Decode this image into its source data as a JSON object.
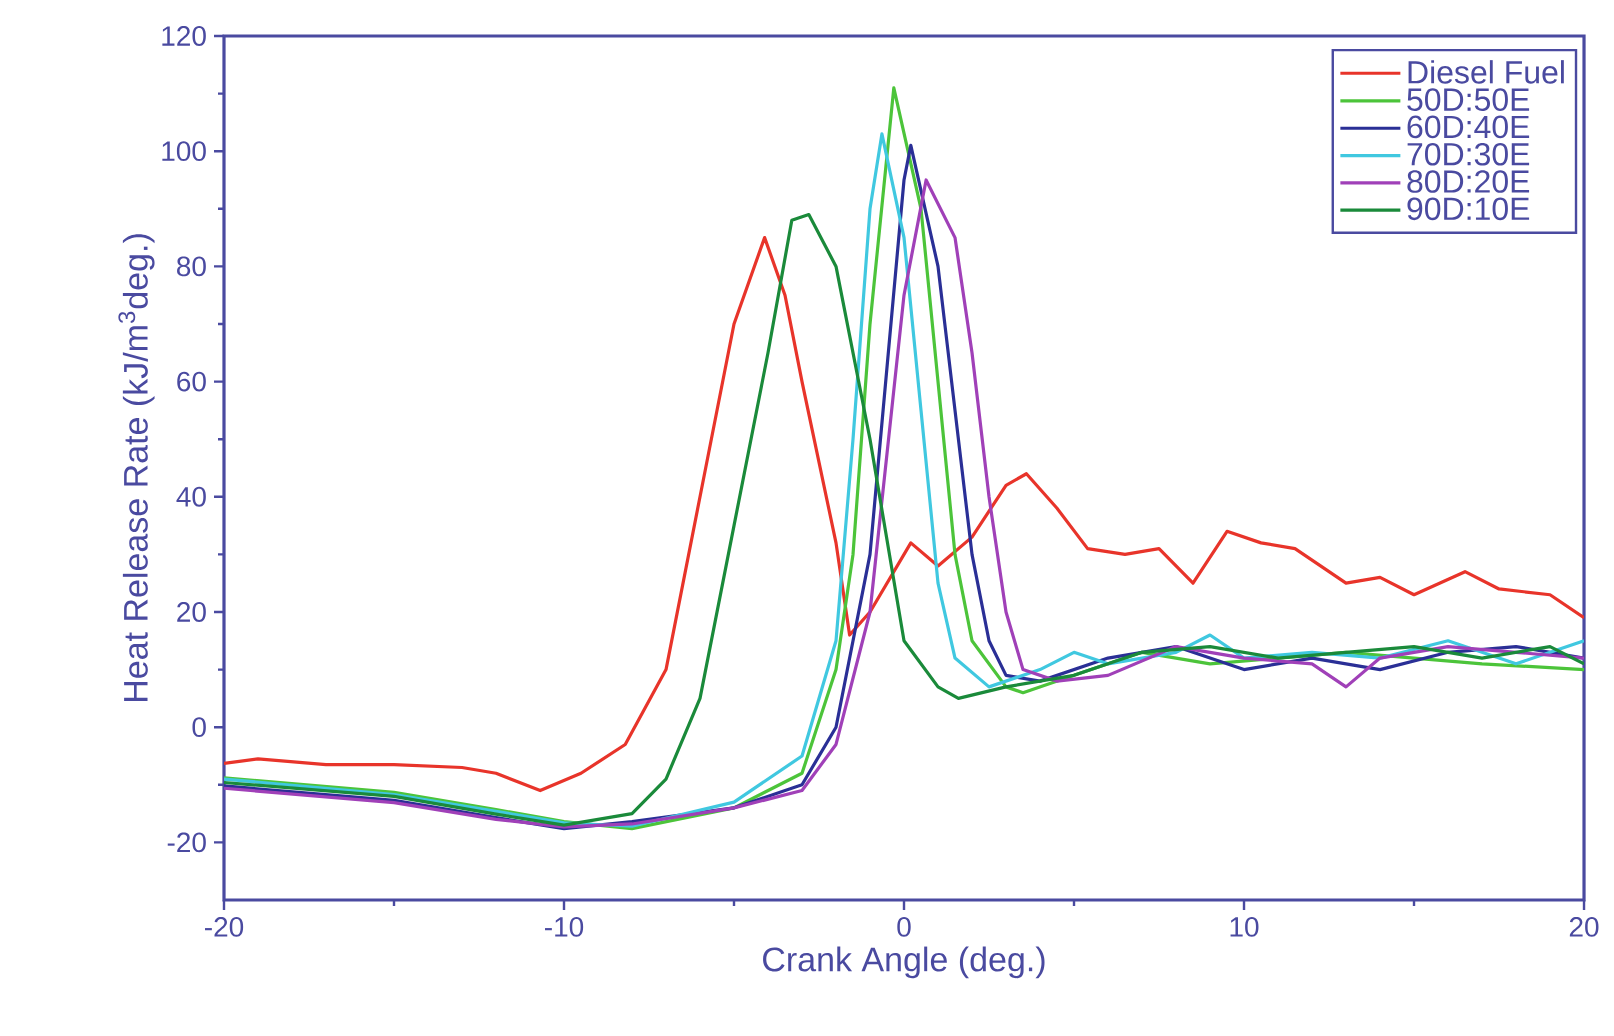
{
  "chart_data": {
    "type": "line",
    "xlabel": "Crank Angle (deg.)",
    "ylabel": "Heat Release Rate (kJ/m$^{3}$deg.)",
    "xlim": [
      -20,
      20
    ],
    "ylim": [
      -30,
      120
    ],
    "xticks": [
      -20,
      -10,
      0,
      10,
      20
    ],
    "yticks": [
      -20,
      0,
      20,
      40,
      60,
      80,
      100,
      120
    ],
    "grid": false,
    "legend": "top right",
    "marker": "none",
    "line_style": "solid",
    "series": [
      {
        "name": "Diesel Fuel",
        "color": "#e8342a",
        "x": [
          -20,
          -19,
          -17,
          -15,
          -13,
          -12,
          -10.7,
          -9.5,
          -8.2,
          -7,
          -6,
          -5,
          -4.1,
          -3.5,
          -3,
          -2,
          -1.6,
          -1,
          0.2,
          1,
          2,
          3,
          3.6,
          4.5,
          5.4,
          6.5,
          7.5,
          8.5,
          9.5,
          10.5,
          11.5,
          13,
          14,
          15,
          16.5,
          17.5,
          19,
          20
        ],
        "values": [
          -6.3,
          -5.5,
          -6.5,
          -6.5,
          -7,
          -8,
          -11,
          -8,
          -3,
          10,
          40,
          70,
          85,
          75,
          60,
          32,
          16,
          20,
          32,
          28,
          33,
          42,
          44,
          38,
          31,
          30,
          31,
          25,
          34,
          32,
          31,
          25,
          26,
          23,
          27,
          24,
          23,
          19
        ]
      },
      {
        "name": "50D:50E",
        "color": "#4cc43a",
        "x": [
          -20,
          -15,
          -12,
          -10,
          -8,
          -5,
          -3,
          -2,
          -1.5,
          -1,
          -0.3,
          0.5,
          1,
          1.5,
          2,
          3,
          3.5,
          5,
          7,
          9,
          11,
          13,
          15,
          17,
          20
        ],
        "values": [
          -8.8,
          -11.3,
          -14.3,
          -16.4,
          -17.6,
          -14,
          -8,
          10,
          30,
          70,
          111,
          90,
          60,
          30,
          15,
          7,
          6,
          9,
          13,
          11,
          12,
          13,
          12,
          11,
          10
        ]
      },
      {
        "name": "60D:40E",
        "color": "#2a2f96",
        "x": [
          -20,
          -15,
          -12,
          -10,
          -8,
          -5,
          -3,
          -2,
          -1,
          0,
          0.2,
          1,
          1.5,
          2,
          2.5,
          3,
          4,
          6,
          8,
          10,
          12,
          14,
          16,
          18,
          20
        ],
        "values": [
          -10.2,
          -12.7,
          -15.7,
          -17.6,
          -16.4,
          -14,
          -10,
          0,
          30,
          95,
          101,
          80,
          55,
          30,
          15,
          9,
          8,
          12,
          14,
          10,
          12,
          10,
          13,
          14,
          12
        ]
      },
      {
        "name": "70D:30E",
        "color": "#40c8e0",
        "x": [
          -20,
          -15,
          -12,
          -10,
          -8,
          -5,
          -3,
          -2,
          -1.5,
          -1,
          -0.65,
          0,
          0.5,
          1,
          1.5,
          2.5,
          4,
          5,
          6,
          8,
          9,
          10,
          12,
          14,
          16,
          18,
          20
        ],
        "values": [
          -9.0,
          -11.7,
          -14.6,
          -16.6,
          -17.2,
          -13,
          -5,
          15,
          50,
          90,
          103,
          85,
          55,
          25,
          12,
          7,
          10,
          13,
          11,
          13,
          16,
          12,
          13,
          12,
          15,
          11,
          15
        ]
      },
      {
        "name": "80D:20E",
        "color": "#a040b8",
        "x": [
          -20,
          -15,
          -12,
          -10,
          -8,
          -5,
          -3,
          -2,
          -1,
          0,
          0.65,
          1.5,
          2,
          2.5,
          3,
          3.5,
          4.5,
          6,
          8,
          10,
          12,
          13,
          14,
          16,
          18,
          20
        ],
        "values": [
          -10.6,
          -13.1,
          -16.0,
          -17.3,
          -16.8,
          -14,
          -11,
          -3,
          20,
          75,
          95,
          85,
          65,
          40,
          20,
          10,
          8,
          9,
          14,
          12,
          11,
          7,
          12,
          14,
          13,
          12
        ]
      },
      {
        "name": "90D:10E",
        "color": "#1a8a3a",
        "x": [
          -20,
          -15,
          -12,
          -10,
          -8,
          -7,
          -6,
          -5,
          -4,
          -3.3,
          -2.8,
          -2,
          -1,
          0,
          1,
          1.6,
          3,
          5,
          7,
          9,
          11,
          13,
          15,
          17,
          19,
          20
        ],
        "values": [
          -9.6,
          -12.0,
          -15.1,
          -17.0,
          -15,
          -9,
          5,
          35,
          65,
          88,
          89,
          80,
          50,
          15,
          7,
          5,
          7,
          9,
          13,
          14,
          12,
          13,
          14,
          12,
          14,
          11
        ]
      }
    ]
  }
}
